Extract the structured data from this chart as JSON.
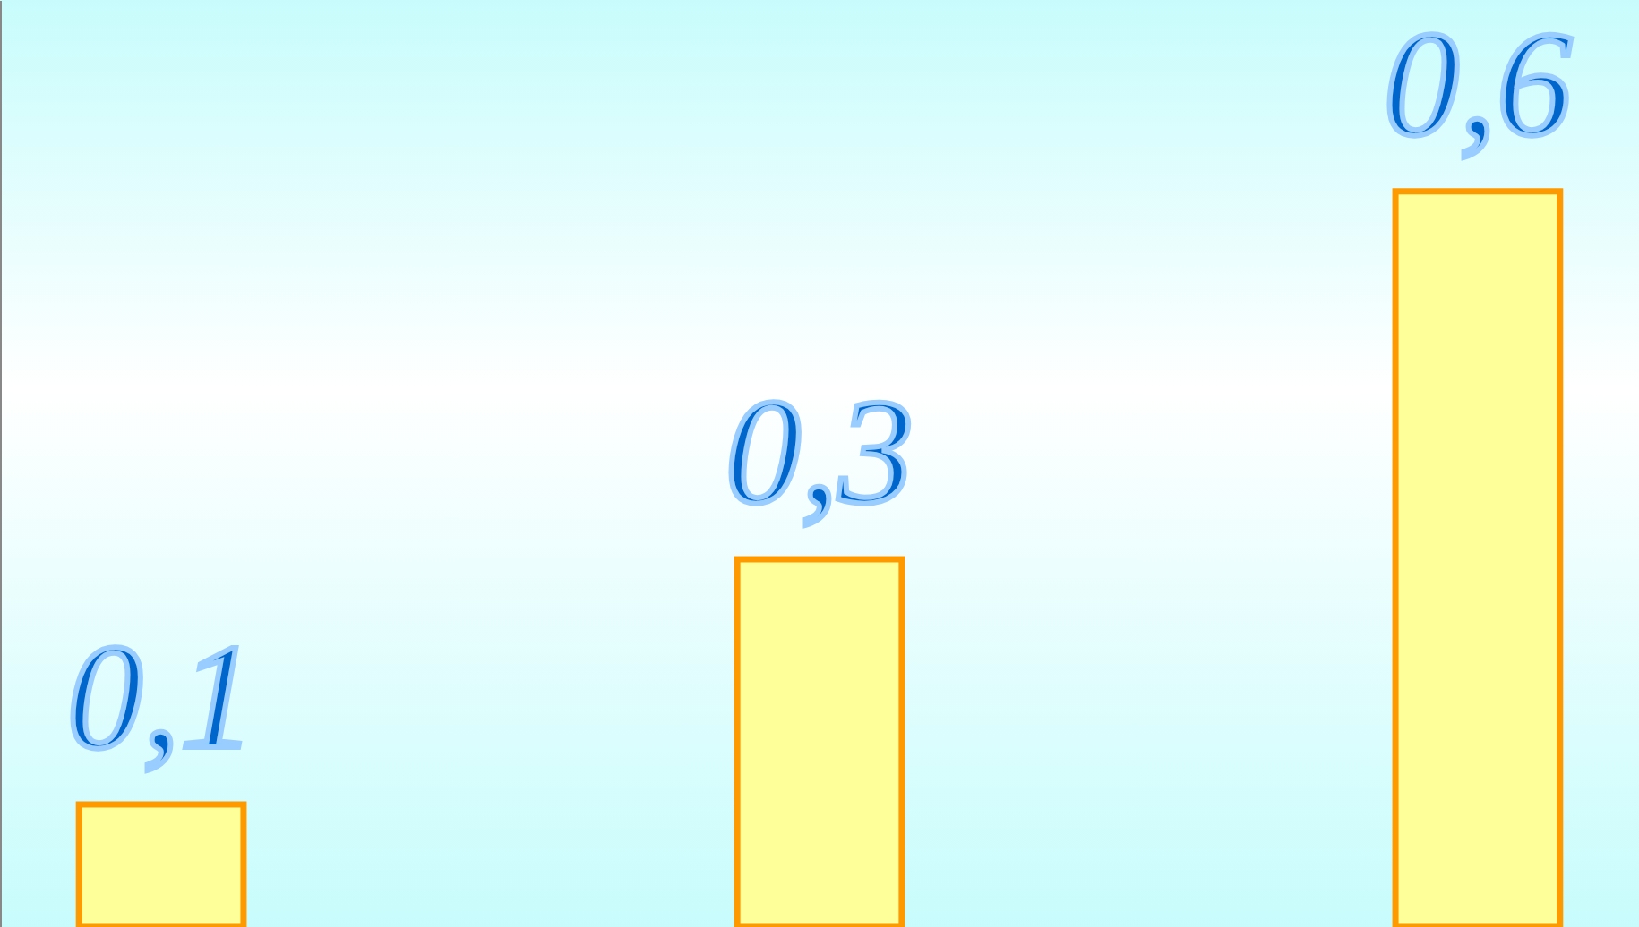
{
  "chart_data": {
    "type": "bar",
    "categories": [
      null,
      null,
      null
    ],
    "values": [
      0.1,
      0.3,
      0.6
    ],
    "value_labels": [
      "0,1",
      "0,3",
      "0,6"
    ],
    "color": "#ffff99"
  }
}
